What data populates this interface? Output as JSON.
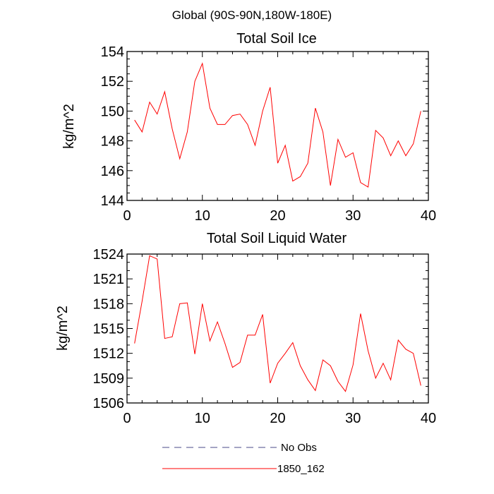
{
  "figure": {
    "suptitle": "Global (90S-90N,180W-180E)"
  },
  "chart_data": [
    {
      "type": "line",
      "title": "Total Soil Ice",
      "xlabel": "",
      "ylabel": "kg/m^2",
      "xlim": [
        0,
        40
      ],
      "ylim": [
        144,
        154
      ],
      "xticks": [
        0,
        10,
        20,
        30,
        40
      ],
      "yticks": [
        144,
        146,
        148,
        150,
        152,
        154
      ],
      "grid": false,
      "series": [
        {
          "name": "1850_162",
          "color": "#ff0000",
          "x": [
            1,
            2,
            3,
            4,
            5,
            6,
            7,
            8,
            9,
            10,
            11,
            12,
            13,
            14,
            15,
            16,
            17,
            18,
            19,
            20,
            21,
            22,
            23,
            24,
            25,
            26,
            27,
            28,
            29,
            30,
            31,
            32,
            33,
            34,
            35,
            36,
            37,
            38,
            39
          ],
          "y": [
            149.4,
            148.6,
            150.6,
            149.8,
            151.3,
            148.8,
            146.8,
            148.6,
            152.0,
            153.2,
            150.2,
            149.1,
            149.1,
            149.7,
            149.8,
            149.1,
            147.7,
            150.0,
            151.6,
            146.5,
            147.7,
            145.3,
            145.6,
            146.5,
            150.2,
            148.6,
            145.0,
            148.1,
            146.9,
            147.2,
            145.2,
            144.9,
            148.7,
            148.2,
            147.0,
            148.0,
            147.0,
            147.8,
            150.0
          ]
        }
      ]
    },
    {
      "type": "line",
      "title": "Total Soil Liquid Water",
      "xlabel": "",
      "ylabel": "kg/m^2",
      "xlim": [
        0,
        40
      ],
      "ylim": [
        1506,
        1524
      ],
      "xticks": [
        0,
        10,
        20,
        30,
        40
      ],
      "yticks": [
        1506,
        1509,
        1512,
        1515,
        1518,
        1521,
        1524
      ],
      "grid": false,
      "series": [
        {
          "name": "1850_162",
          "color": "#ff0000",
          "x": [
            1,
            2,
            3,
            4,
            5,
            6,
            7,
            8,
            9,
            10,
            11,
            12,
            13,
            14,
            15,
            16,
            17,
            18,
            19,
            20,
            21,
            22,
            23,
            24,
            25,
            26,
            27,
            28,
            29,
            30,
            31,
            32,
            33,
            34,
            35,
            36,
            37,
            38,
            39
          ],
          "y": [
            1513.2,
            1518.3,
            1523.8,
            1523.4,
            1513.8,
            1514.0,
            1518.0,
            1518.1,
            1511.9,
            1518.0,
            1513.5,
            1515.8,
            1513.2,
            1510.3,
            1510.9,
            1514.2,
            1514.2,
            1516.7,
            1508.4,
            1510.8,
            1512.0,
            1513.3,
            1510.5,
            1508.8,
            1507.5,
            1511.2,
            1510.5,
            1508.6,
            1507.4,
            1510.6,
            1516.8,
            1512.3,
            1509.0,
            1510.8,
            1508.8,
            1513.6,
            1512.5,
            1512.0,
            1508.1
          ]
        }
      ]
    }
  ],
  "legend": {
    "placement": "bottom-center",
    "entries": [
      {
        "label": "No Obs",
        "color": "#4a4a8a",
        "style": "dashed"
      },
      {
        "label": "1850_162",
        "color": "#ff0000",
        "style": "solid"
      }
    ]
  }
}
